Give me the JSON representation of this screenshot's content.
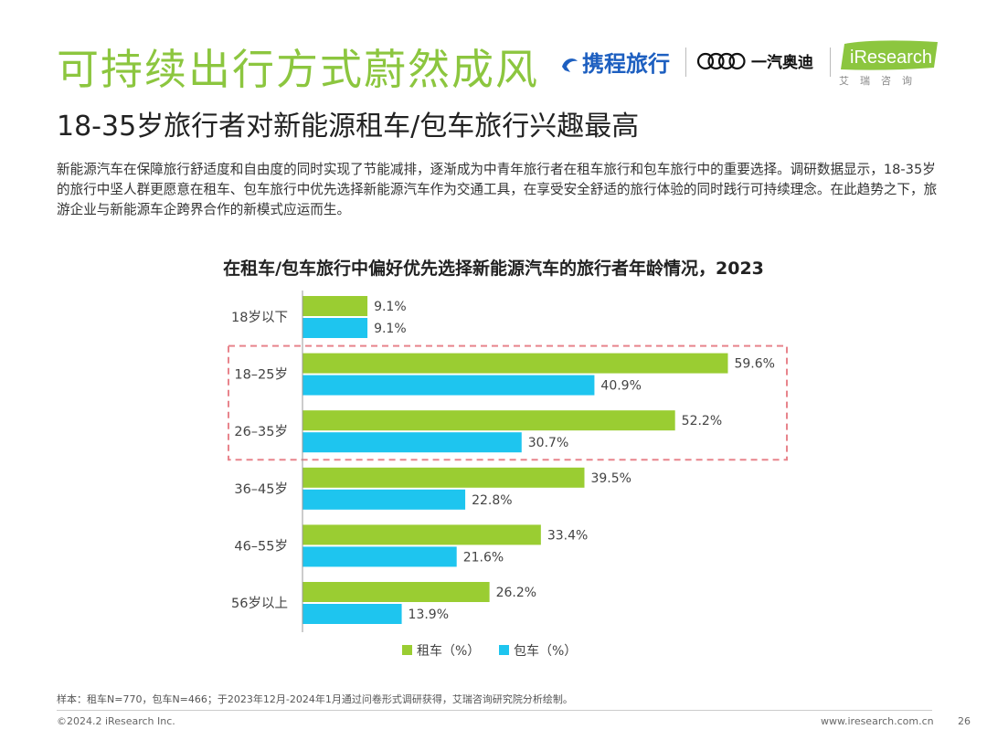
{
  "header": {
    "title": "可持续出行方式蔚然成风",
    "subtitle": "18-35岁旅行者对新能源租车/包车旅行兴趣最高"
  },
  "logos": {
    "ctrip": "携程旅行",
    "faw": "一汽奥迪",
    "ir_name": "iResearch",
    "ir_sub": "艾瑞咨询"
  },
  "description": "新能源汽车在保障旅行舒适度和自由度的同时实现了节能减排，逐渐成为中青年旅行者在租车旅行和包车旅行中的重要选择。调研数据显示，18-35岁的旅行中坚人群更愿意在租车、包车旅行中优先选择新能源汽车作为交通工具，在享受安全舒适的旅行体验的同时践行可持续理念。在此趋势之下，旅游企业与新能源车企跨界合作的新模式应运而生。",
  "colors": {
    "title_green": "#8cc63f",
    "rental": "#9acd32",
    "charter": "#1ec5ef",
    "highlight_box": "#e8848c",
    "ctrip_blue": "#1d5fc0",
    "ir_green": "#8cc63f"
  },
  "chart_data": {
    "type": "bar",
    "orientation": "horizontal",
    "title": "在租车/包车旅行中偏好优先选择新能源汽车的旅行者年龄情况，2023",
    "categories": [
      "18岁以下",
      "18–25岁",
      "26–35岁",
      "36–45岁",
      "46–55岁",
      "56岁以上"
    ],
    "series": [
      {
        "name": "租车（%）",
        "values": [
          9.1,
          59.6,
          52.2,
          39.5,
          33.4,
          26.2
        ],
        "labels": [
          "9.1%",
          "59.6%",
          "52.2%",
          "39.5%",
          "33.4%",
          "26.2%"
        ]
      },
      {
        "name": "包车（%）",
        "values": [
          9.1,
          40.9,
          30.7,
          22.8,
          21.6,
          13.9
        ],
        "labels": [
          "9.1%",
          "40.9%",
          "30.7%",
          "22.8%",
          "21.6%",
          "13.9%"
        ]
      }
    ],
    "xlim": [
      0,
      100
    ],
    "grid": false,
    "legend": "bottom-center",
    "highlighted_categories": [
      "18–25岁",
      "26–35岁"
    ]
  },
  "footer": {
    "note": "样本：租车N=770，包车N=466；于2023年12月-2024年1月通过问卷形式调研获得，艾瑞咨询研究院分析绘制。",
    "copyright": "©2024.2 iResearch Inc.",
    "website": "www.iresearch.com.cn",
    "page": "26"
  }
}
